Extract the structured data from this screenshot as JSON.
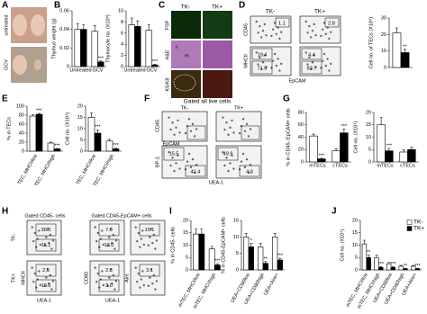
{
  "panel_letters": [
    "A",
    "B",
    "C",
    "D",
    "E",
    "F",
    "G",
    "H",
    "I",
    "J"
  ],
  "panels": {
    "A": {
      "row_labels": [
        "untreated",
        "GCV"
      ]
    },
    "C": {
      "columns": [
        "TK-",
        "TK+"
      ],
      "rows": [
        "FSP",
        "H&E",
        "K5/K8"
      ],
      "regions": [
        "c",
        "m"
      ]
    },
    "D": {
      "headers": [
        "TK-",
        "TK+"
      ],
      "y_top": "CD45",
      "y_bottom": "MHCII",
      "x_label": "EpCAM",
      "quadrants": [
        "1.1",
        "2.8"
      ],
      "gates": [
        [
          "19.4",
          "71.8"
        ],
        [
          "4.4",
          "83.7"
        ]
      ]
    },
    "F": {
      "title": "Gated all live cells",
      "headers": [
        "TK-",
        "TK+"
      ],
      "y_top": "CD45",
      "x_top": "EpCAM",
      "y_bottom": "BP-1",
      "x_bottom": "UEA-1",
      "gates": [
        [
          "15.5",
          "41.4"
        ],
        [
          "49.9",
          "4.8"
        ]
      ]
    },
    "H": {
      "title_left": "Gated CD45- cells",
      "title_right": "Gated CD45-EpCAM+ cells",
      "row_labels": [
        "TK-",
        "TK+"
      ],
      "y_labels": [
        "MHCII",
        "CD80",
        "Aire"
      ],
      "x_label": "UEA-1",
      "gates": [
        [
          [
            "36.5",
            "15.1"
          ],
          [
            "7.0",
            "13.0"
          ],
          [
            "10.1"
          ]
        ],
        [
          [
            "2.5",
            "10.6"
          ],
          [
            "2.3",
            "3.0"
          ],
          [
            "3.1"
          ]
        ]
      ]
    }
  },
  "chart_data": [
    {
      "type": "bar",
      "title": "Thymus weight (g)",
      "categories": [
        "Untreated",
        "GCV"
      ],
      "ylim": [
        0,
        0.06
      ],
      "yticks": [
        0,
        0.02,
        0.04,
        0.06
      ],
      "series": [
        {
          "color": "#ffffff",
          "values": [
            0.04,
            0.038
          ],
          "errors": [
            0.006,
            0.006
          ],
          "annotations": [
            null,
            null
          ]
        },
        {
          "color": "#000000",
          "values": [
            0.04,
            0.005
          ],
          "errors": [
            0.005,
            0.001
          ],
          "annotations": [
            null,
            "***"
          ]
        }
      ]
    },
    {
      "type": "bar",
      "title": "Thymocyte no. (X10⁸)",
      "categories": [
        "Untreated",
        "GCV"
      ],
      "ylim": [
        0,
        10
      ],
      "yticks": [
        0,
        2,
        4,
        6,
        8,
        10
      ],
      "series": [
        {
          "color": "#ffffff",
          "values": [
            7.5,
            6.5
          ],
          "errors": [
            1.2,
            1.0
          ],
          "annotations": [
            null,
            null
          ]
        },
        {
          "color": "#000000",
          "values": [
            7.2,
            0.3
          ],
          "errors": [
            1.0,
            0.1
          ],
          "annotations": [
            null,
            "***"
          ]
        }
      ]
    },
    {
      "type": "bar",
      "title": "Cell no. of TECs (X10⁴)",
      "categories": [
        null
      ],
      "ylim": [
        0,
        30
      ],
      "yticks": [
        0,
        10,
        20,
        30
      ],
      "series": [
        {
          "color": "#ffffff",
          "values": [
            21
          ],
          "errors": [
            3
          ],
          "annotations": [
            null
          ]
        },
        {
          "color": "#000000",
          "values": [
            9
          ],
          "errors": [
            2
          ],
          "annotations": [
            "**"
          ]
        }
      ]
    },
    {
      "type": "bar",
      "title": "% in TECs",
      "categories": [
        "TEC, MHCIIlow",
        "TEC, MHCIIhigh"
      ],
      "ylim": [
        0,
        100
      ],
      "yticks": [
        0,
        20,
        40,
        60,
        80,
        100
      ],
      "series": [
        {
          "color": "#ffffff",
          "values": [
            78,
            18
          ],
          "errors": [
            3,
            2
          ],
          "annotations": [
            null,
            null
          ]
        },
        {
          "color": "#000000",
          "values": [
            82,
            5
          ],
          "errors": [
            2,
            1
          ],
          "annotations": [
            "***",
            "***"
          ]
        }
      ]
    },
    {
      "type": "bar",
      "title": "Cell no. (X10⁴)",
      "categories": [
        "TEC, MHCIIlow",
        "TEC, MHCIIhigh"
      ],
      "ylim": [
        0,
        20
      ],
      "yticks": [
        0,
        5,
        10,
        15,
        20
      ],
      "series": [
        {
          "color": "#ffffff",
          "values": [
            15,
            4.5
          ],
          "errors": [
            2,
            0.8
          ],
          "annotations": [
            null,
            null
          ]
        },
        {
          "color": "#000000",
          "values": [
            8,
            1
          ],
          "errors": [
            1.5,
            0.3
          ],
          "annotations": [
            "***",
            "***"
          ]
        }
      ]
    },
    {
      "type": "bar",
      "title": "% in CD45- EpCAM+ cells",
      "categories": [
        "mTECs",
        "cTECs"
      ],
      "ylim": [
        0,
        80
      ],
      "yticks": [
        0,
        20,
        40,
        60,
        80
      ],
      "series": [
        {
          "color": "#ffffff",
          "values": [
            42,
            18
          ],
          "errors": [
            3,
            3
          ],
          "annotations": [
            null,
            null
          ]
        },
        {
          "color": "#000000",
          "values": [
            5,
            47
          ],
          "errors": [
            1,
            6
          ],
          "annotations": [
            "***",
            "***"
          ]
        }
      ]
    },
    {
      "type": "bar",
      "title": "Cell no. (X10⁴)",
      "categories": [
        "mTECs",
        "cTECs"
      ],
      "ylim": [
        0,
        20
      ],
      "yticks": [
        0,
        5,
        10,
        15,
        20
      ],
      "series": [
        {
          "color": "#ffffff",
          "values": [
            15,
            4
          ],
          "errors": [
            3,
            1
          ],
          "annotations": [
            null,
            null
          ]
        },
        {
          "color": "#000000",
          "values": [
            4.5,
            5
          ],
          "errors": [
            1,
            1
          ],
          "annotations": [
            "***",
            null
          ]
        }
      ]
    },
    {
      "type": "bar",
      "title": "% in CD45- cells",
      "categories": [
        "mTEC, MHCIIlow",
        "mTEC, MHCIIhigh"
      ],
      "ylim": [
        0,
        20
      ],
      "yticks": [
        0,
        5,
        10,
        15,
        20
      ],
      "series": [
        {
          "color": "#ffffff",
          "values": [
            14.5,
            8.5
          ],
          "errors": [
            2,
            1
          ],
          "annotations": [
            null,
            null
          ]
        },
        {
          "color": "#000000",
          "values": [
            14.5,
            2
          ],
          "errors": [
            2,
            0.5
          ],
          "annotations": [
            null,
            "***"
          ]
        }
      ]
    },
    {
      "type": "bar",
      "title": "% in CD45-EpCAM+ cells",
      "categories": [
        "UEA+CD80low",
        "UEA+CD80high",
        "UEA+Aire+"
      ],
      "ylim": [
        0,
        15
      ],
      "yticks": [
        0,
        5,
        10,
        15
      ],
      "series": [
        {
          "color": "#ffffff",
          "values": [
            10,
            7,
            10
          ],
          "errors": [
            1,
            1,
            1
          ],
          "annotations": [
            null,
            null,
            null
          ]
        },
        {
          "color": "#000000",
          "values": [
            7,
            2,
            3
          ],
          "errors": [
            1,
            0.5,
            0.5
          ],
          "annotations": [
            "*",
            "**",
            "***"
          ]
        }
      ]
    },
    {
      "type": "bar",
      "title": "Cell no. (X10⁴)",
      "categories": [
        "mTEC, MHCIIlow",
        "mTEC, MHCIIhigh",
        "UEA+CD80low",
        "UEA+CD80high",
        "UEA+Aire+"
      ],
      "ylim": [
        0,
        20
      ],
      "yticks": [
        0,
        5,
        10,
        15,
        20
      ],
      "legend": "upper right",
      "series": [
        {
          "name": "TK-",
          "color": "#ffffff",
          "values": [
            10.5,
            5,
            2.5,
            1.5,
            1.5
          ],
          "errors": [
            1.5,
            1,
            0.5,
            0.3,
            0.3
          ],
          "annotations": [
            null,
            null,
            null,
            null,
            null
          ]
        },
        {
          "name": "TK+",
          "color": "#000000",
          "values": [
            5,
            1,
            1,
            0.5,
            0.5
          ],
          "errors": [
            1,
            0.3,
            0.3,
            0.1,
            0.1
          ],
          "annotations": [
            "**",
            "***",
            "***",
            "**",
            "***"
          ]
        }
      ]
    }
  ]
}
